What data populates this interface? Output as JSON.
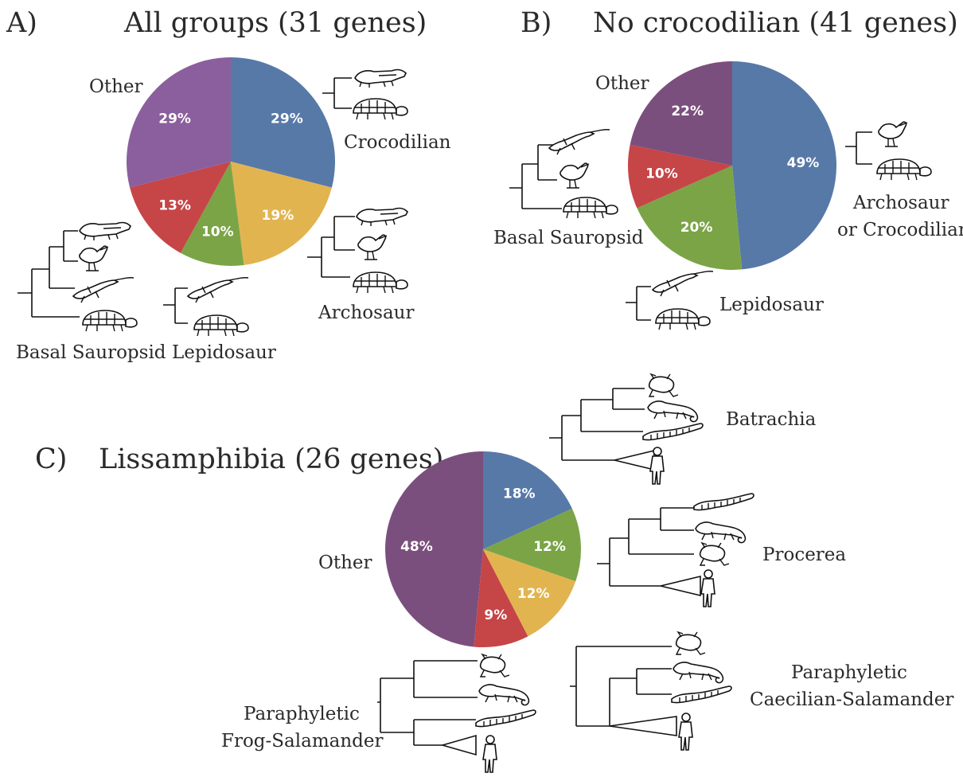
{
  "colors": {
    "blue": "#5779a8",
    "yellow": "#e2b450",
    "green": "#7ba447",
    "red": "#c64547",
    "purple_a": "#8b5f9d",
    "purple": "#7b4f7d"
  },
  "chart_data": [
    {
      "type": "pie",
      "panel": "A)",
      "title": "All groups (31 genes)",
      "slices": [
        {
          "value": 29,
          "label": "29%",
          "color_key": "blue"
        },
        {
          "value": 19,
          "label": "19%",
          "color_key": "yellow"
        },
        {
          "value": 10,
          "label": "10%",
          "color_key": "green"
        },
        {
          "value": 13,
          "label": "13%",
          "color_key": "red"
        },
        {
          "value": 29,
          "label": "29%",
          "color_key": "purple_a"
        }
      ],
      "annotations": {
        "other": "Other",
        "crocodilian": "Crocodilian",
        "archosaur": "Archosaur",
        "basal_sauropsid": "Basal Sauropsid",
        "lepidosaur": "Lepidosaur"
      }
    },
    {
      "type": "pie",
      "panel": "B)",
      "title": "No crocodilian (41 genes)",
      "slices": [
        {
          "value": 49,
          "label": "49%",
          "color_key": "blue"
        },
        {
          "value": 20,
          "label": "20%",
          "color_key": "green"
        },
        {
          "value": 10,
          "label": "10%",
          "color_key": "red"
        },
        {
          "value": 22,
          "label": "22%",
          "color_key": "purple"
        }
      ],
      "annotations": {
        "other": "Other",
        "archosaur_or_croc_1": "Archosaur",
        "archosaur_or_croc_2": "or Crocodilian",
        "basal_sauropsid": "Basal Sauropsid",
        "lepidosaur": "Lepidosaur"
      }
    },
    {
      "type": "pie",
      "panel": "C)",
      "title": "Lissamphibia (26 genes)",
      "slices": [
        {
          "value": 18,
          "label": "18%",
          "color_key": "blue"
        },
        {
          "value": 12,
          "label": "12%",
          "color_key": "green"
        },
        {
          "value": 12,
          "label": "12%",
          "color_key": "yellow"
        },
        {
          "value": 9,
          "label": "9%",
          "color_key": "red"
        },
        {
          "value": 48,
          "label": "48%",
          "color_key": "purple"
        }
      ],
      "annotations": {
        "other": "Other",
        "batrachia": "Batrachia",
        "procerea": "Procerea",
        "para_cs_1": "Paraphyletic",
        "para_cs_2": "Caecilian-Salamander",
        "para_fs_1": "Paraphyletic",
        "para_fs_2": "Frog-Salamander"
      }
    }
  ]
}
